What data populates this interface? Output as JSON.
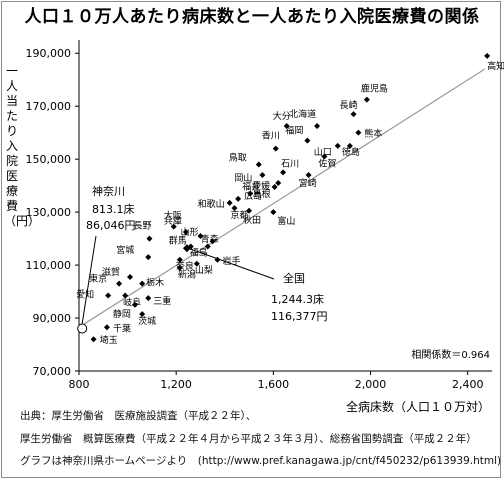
{
  "chart_data": {
    "type": "scatter",
    "title": "人口１０万人あたり病床数と一人あたり入院医療費の関係",
    "ylabel": "一人当たり入院医療費（円）",
    "xlabel": "全病床数（人口１０万対）",
    "xlim": [
      800,
      2500
    ],
    "ylim": [
      70000,
      195000
    ],
    "xticks": [
      800,
      1200,
      1600,
      2000,
      2400
    ],
    "xtick_labels": [
      "800",
      "1,200",
      "1,600",
      "2,000",
      "2,400"
    ],
    "yticks": [
      70000,
      90000,
      110000,
      130000,
      150000,
      170000,
      190000
    ],
    "ytick_labels": [
      "70,000",
      "90,000",
      "110,000",
      "130,000",
      "150,000",
      "170,000",
      "190,000"
    ],
    "grid": false,
    "trendline": [
      [
        800,
        86500
      ],
      [
        2470,
        184000
      ]
    ],
    "correlation": "相関係数＝0.964",
    "points": [
      {
        "label": "高知",
        "x": 2480,
        "y": 189000
      },
      {
        "label": "鹿児島",
        "x": 1985,
        "y": 172500
      },
      {
        "label": "長崎",
        "x": 1930,
        "y": 167000
      },
      {
        "label": "熊本",
        "x": 1950,
        "y": 160000
      },
      {
        "label": "大分",
        "x": 1655,
        "y": 162500
      },
      {
        "label": "北海道",
        "x": 1780,
        "y": 162500
      },
      {
        "label": "福岡",
        "x": 1740,
        "y": 157000
      },
      {
        "label": "山口",
        "x": 1865,
        "y": 155000
      },
      {
        "label": "徳島",
        "x": 1915,
        "y": 155000
      },
      {
        "label": "香川",
        "x": 1610,
        "y": 154000
      },
      {
        "label": "佐賀",
        "x": 1810,
        "y": 151000
      },
      {
        "label": "鳥取",
        "x": 1540,
        "y": 148000
      },
      {
        "label": "石川",
        "x": 1640,
        "y": 145000
      },
      {
        "label": "岡山",
        "x": 1555,
        "y": 144000
      },
      {
        "label": "宮崎",
        "x": 1745,
        "y": 144000
      },
      {
        "label": "愛媛",
        "x": 1620,
        "y": 141000
      },
      {
        "label": "島根",
        "x": 1605,
        "y": 139500
      },
      {
        "label": "福井",
        "x": 1505,
        "y": 137000
      },
      {
        "label": "神奈川",
        "x": 813.1,
        "y": 86046
      },
      {
        "label": "神奈川",
        "x": 813.1,
        "y": 86046
      },
      {
        "label": "広島",
        "x": 1455,
        "y": 135000
      },
      {
        "label": "和歌山",
        "x": 1420,
        "y": 133500
      },
      {
        "label": "京都",
        "x": 1440,
        "y": 131500
      },
      {
        "label": "秋田",
        "x": 1500,
        "y": 130500
      },
      {
        "label": "富山",
        "x": 1600,
        "y": 130000
      },
      {
        "label": "大阪",
        "x": 1190,
        "y": 124500
      },
      {
        "label": "兵庫",
        "x": 1240,
        "y": 122500
      },
      {
        "label": "山形",
        "x": 1300,
        "y": 121000
      },
      {
        "label": "青森",
        "x": 1350,
        "y": 119000
      },
      {
        "label": "群馬",
        "x": 1260,
        "y": 117000
      },
      {
        "label": "福島",
        "x": 1330,
        "y": 117000
      },
      {
        "label": "長野",
        "x": 1090,
        "y": 120000
      },
      {
        "label": "宮城",
        "x": 1085,
        "y": 113000
      },
      {
        "label": "奈良",
        "x": 1215,
        "y": 112000
      },
      {
        "label": "岩手",
        "x": 1370,
        "y": 112000
      },
      {
        "label": "新潟",
        "x": 1215,
        "y": 109000
      },
      {
        "label": "山梨",
        "x": 1285,
        "y": 110500
      },
      {
        "label": "全国",
        "x": 1244.3,
        "y": 116377
      },
      {
        "label": "滋賀",
        "x": 1010,
        "y": 105500
      },
      {
        "label": "東京",
        "x": 965,
        "y": 103000
      },
      {
        "label": "栃木",
        "x": 1060,
        "y": 103000
      },
      {
        "label": "愛知",
        "x": 920,
        "y": 98500
      },
      {
        "label": "岐阜",
        "x": 990,
        "y": 98500
      },
      {
        "label": "静岡",
        "x": 1030,
        "y": 95000
      },
      {
        "label": "三重",
        "x": 1085,
        "y": 97500
      },
      {
        "label": "茨城",
        "x": 1060,
        "y": 91500
      },
      {
        "label": "千葉",
        "x": 915,
        "y": 86500
      },
      {
        "label": "埼玉",
        "x": 860,
        "y": 82000
      }
    ],
    "annotations": [
      {
        "name": "kanagawa",
        "lines": [
          "神奈川",
          "813.1床",
          "86,046円"
        ]
      },
      {
        "name": "national",
        "lines": [
          "全国",
          "1,244.3床",
          "116,377円"
        ]
      }
    ]
  },
  "source": {
    "line1": "出典：厚生労働省　医療施設調査（平成２２年）、",
    "line2": "厚生労働省　概算医療費（平成２２年４月から平成２３年３月）、総務省国勢調査（平成２２年）",
    "line3": "グラフは神奈川県ホームページより　(http://www.pref.kanagawa.jp/cnt/f450232/p613939.html)"
  }
}
